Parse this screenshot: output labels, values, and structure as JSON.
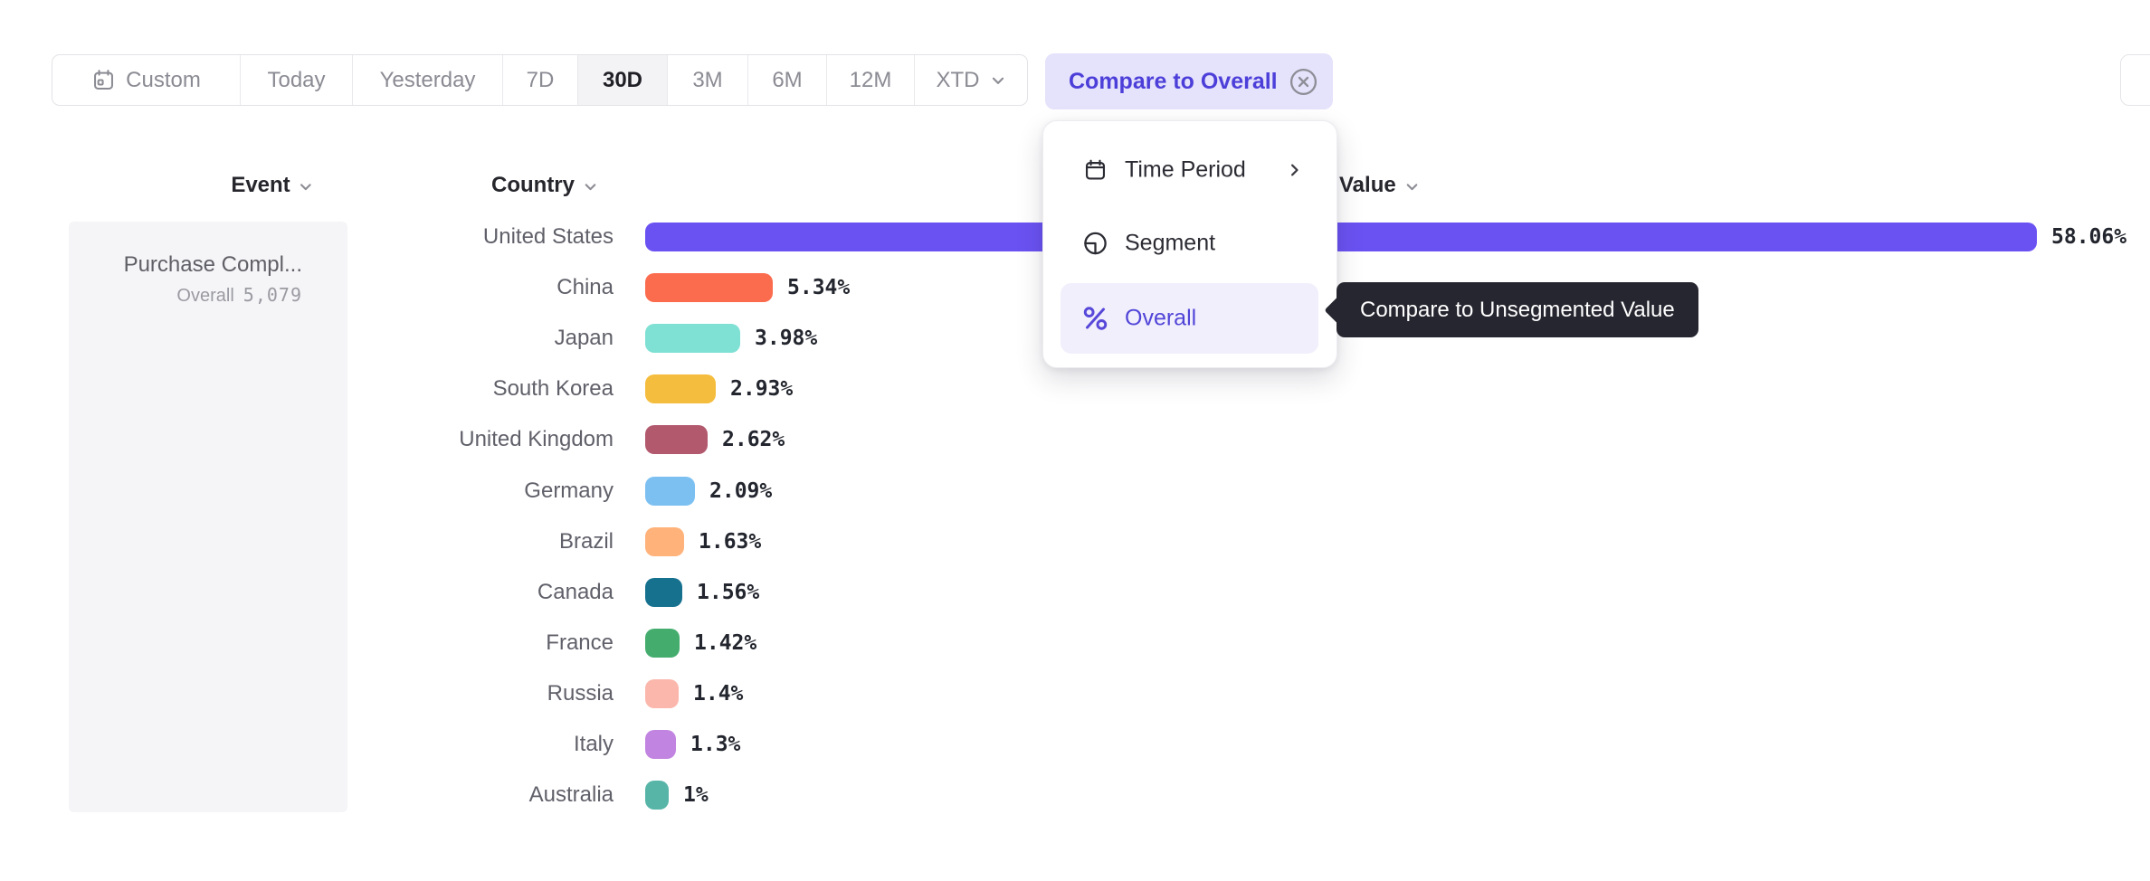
{
  "toolbar": {
    "items": [
      {
        "label": "Custom",
        "icon": "calendar-icon",
        "selected": false
      },
      {
        "label": "Today",
        "selected": false
      },
      {
        "label": "Yesterday",
        "selected": false
      },
      {
        "label": "7D",
        "selected": false
      },
      {
        "label": "30D",
        "selected": true
      },
      {
        "label": "3M",
        "selected": false
      },
      {
        "label": "6M",
        "selected": false
      },
      {
        "label": "12M",
        "selected": false
      },
      {
        "label": "XTD",
        "chevron": "chevron-down-icon",
        "selected": false
      }
    ]
  },
  "compare_chip": {
    "label": "Compare to Overall",
    "close_icon": "circle-x-icon"
  },
  "columns": {
    "event": {
      "label": "Event",
      "chevron": "chevron-down-icon"
    },
    "country": {
      "label": "Country",
      "chevron": "chevron-down-icon"
    },
    "value": {
      "label": "Value",
      "chevron": "chevron-down-icon"
    }
  },
  "event_panel": {
    "event_name": "Purchase Compl...",
    "overall_label": "Overall",
    "overall_value": "5,079"
  },
  "chart_data": {
    "type": "bar",
    "orientation": "horizontal",
    "value_format": "percent",
    "categories": [
      "United States",
      "China",
      "Japan",
      "South Korea",
      "United Kingdom",
      "Germany",
      "Brazil",
      "Canada",
      "France",
      "Russia",
      "Italy",
      "Australia"
    ],
    "values": [
      58.06,
      5.34,
      3.98,
      2.93,
      2.62,
      2.09,
      1.63,
      1.56,
      1.42,
      1.4,
      1.3,
      1
    ],
    "value_labels": [
      "58.06%",
      "5.34%",
      "3.98%",
      "2.93%",
      "2.62%",
      "2.09%",
      "1.63%",
      "1.56%",
      "1.42%",
      "1.4%",
      "1.3%",
      "1%"
    ],
    "bar_colors": [
      "#6A52F2",
      "#FB6C4E",
      "#7FE0D4",
      "#F5BD3D",
      "#B2596E",
      "#7CC0F2",
      "#FFB27A",
      "#16718F",
      "#44AD6E",
      "#FBB7AC",
      "#C184E0",
      "#57B5A8"
    ],
    "xlabel": "",
    "ylabel": "",
    "grid": false,
    "legend": false
  },
  "dropdown": {
    "items": [
      {
        "label": "Time Period",
        "icon": "calendar-icon",
        "chevron_right": true,
        "highlighted": false
      },
      {
        "label": "Segment",
        "icon": "segment-icon",
        "highlighted": false
      },
      {
        "label": "Overall",
        "icon": "percent-icon",
        "highlighted": true
      }
    ]
  },
  "tooltip": {
    "text": "Compare to Unsegmented Value"
  },
  "colors": {
    "accent_purple": "#4C3FD9",
    "chip_background": "#E5E2FB",
    "selected_segment_background": "#F3F3F5",
    "tooltip_background": "#262630",
    "panel_background": "#F5F5F7",
    "toolbar_text": "#8B8B94",
    "dark_text": "#26262D"
  }
}
